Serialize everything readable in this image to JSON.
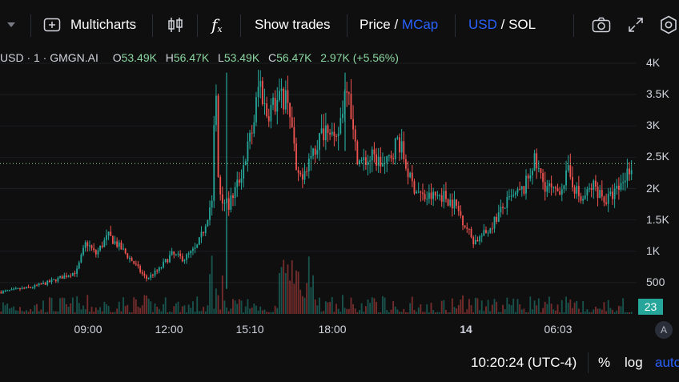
{
  "toolbar": {
    "multicharts_label": "Multicharts",
    "fx_label": "f",
    "show_trades_label": "Show trades",
    "price_label": "Price",
    "price_sep": " / ",
    "mcap_label": "MCap",
    "usd_label": "USD",
    "currency_sep": " / ",
    "sol_label": "SOL"
  },
  "legend": {
    "symbol": "USD · 1 · GMGN.AI",
    "o_label": "O",
    "o_value": "53.49K",
    "h_label": "H",
    "h_value": "56.47K",
    "l_label": "L",
    "l_value": "53.49K",
    "c_label": "C",
    "c_value": "56.47K",
    "change": "2.97K (+5.56%)"
  },
  "colors": {
    "up": "#26a69a",
    "down": "#ef5350",
    "accent": "#2962ff",
    "background": "#0f0f0f"
  },
  "chart_data": {
    "type": "candlestick",
    "y_ticks": [
      "4K",
      "3.5K",
      "3K",
      "2.5K",
      "2K",
      "1.5K",
      "1K",
      "500"
    ],
    "y_tick_values": [
      4000,
      3500,
      3000,
      2500,
      2000,
      1500,
      1000,
      500
    ],
    "ylim": [
      0,
      4200
    ],
    "x_ticks": [
      "09:00",
      "12:00",
      "15:10",
      "18:00",
      "14",
      "06:03"
    ],
    "current_price_line": 2400,
    "volume_badge": "23",
    "close_path": [
      [
        0,
        350
      ],
      [
        0.05,
        430
      ],
      [
        0.08,
        520
      ],
      [
        0.12,
        680
      ],
      [
        0.135,
        1150
      ],
      [
        0.15,
        950
      ],
      [
        0.17,
        1250
      ],
      [
        0.19,
        1050
      ],
      [
        0.21,
        820
      ],
      [
        0.23,
        560
      ],
      [
        0.25,
        700
      ],
      [
        0.27,
        950
      ],
      [
        0.29,
        880
      ],
      [
        0.31,
        1050
      ],
      [
        0.32,
        1300
      ],
      [
        0.335,
        1850
      ],
      [
        0.34,
        3800
      ],
      [
        0.345,
        2000
      ],
      [
        0.36,
        1700
      ],
      [
        0.38,
        2200
      ],
      [
        0.4,
        3000
      ],
      [
        0.41,
        3750
      ],
      [
        0.42,
        3200
      ],
      [
        0.44,
        3400
      ],
      [
        0.455,
        3500
      ],
      [
        0.465,
        2600
      ],
      [
        0.47,
        2100
      ],
      [
        0.49,
        2500
      ],
      [
        0.51,
        2900
      ],
      [
        0.52,
        3100
      ],
      [
        0.53,
        2600
      ],
      [
        0.54,
        3200
      ],
      [
        0.55,
        3850
      ],
      [
        0.56,
        2700
      ],
      [
        0.57,
        2400
      ],
      [
        0.59,
        2500
      ],
      [
        0.61,
        2350
      ],
      [
        0.63,
        2800
      ],
      [
        0.65,
        2100
      ],
      [
        0.67,
        1850
      ],
      [
        0.7,
        1900
      ],
      [
        0.72,
        1750
      ],
      [
        0.75,
        1150
      ],
      [
        0.77,
        1300
      ],
      [
        0.8,
        1750
      ],
      [
        0.83,
        2000
      ],
      [
        0.845,
        2450
      ],
      [
        0.86,
        2100
      ],
      [
        0.88,
        1900
      ],
      [
        0.9,
        2250
      ],
      [
        0.92,
        1800
      ],
      [
        0.94,
        2050
      ],
      [
        0.96,
        1800
      ],
      [
        0.98,
        2000
      ],
      [
        1.0,
        2400
      ]
    ]
  },
  "bottom": {
    "time": "10:20:24 (UTC-4)",
    "percent_label": "%",
    "log_label": "log",
    "auto_label": "auto",
    "a_label": "A"
  }
}
